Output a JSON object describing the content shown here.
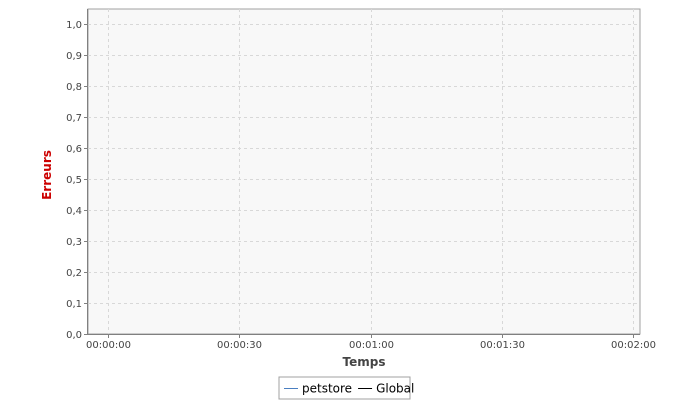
{
  "chart_data": {
    "type": "line",
    "xlabel": "Temps",
    "ylabel": "Erreurs",
    "ylabel_color": "#cc0000",
    "xlabel_color": "#444444",
    "x_ticks": [
      "00:00:00",
      "00:00:30",
      "00:01:00",
      "00:01:30",
      "00:02:00"
    ],
    "x_tick_values": [
      0,
      30,
      60,
      90,
      120
    ],
    "xlim": [
      -4.5,
      121.5
    ],
    "ylim": [
      0,
      1.05
    ],
    "y_ticks": [
      {
        "value": 0,
        "label": "0,0"
      },
      {
        "value": 0.1,
        "label": "0,1"
      },
      {
        "value": 0.2,
        "label": "0,2"
      },
      {
        "value": 0.3,
        "label": "0,3"
      },
      {
        "value": 0.4,
        "label": "0,4"
      },
      {
        "value": 0.5,
        "label": "0,5"
      },
      {
        "value": 0.6,
        "label": "0,6"
      },
      {
        "value": 0.7,
        "label": "0,7"
      },
      {
        "value": 0.8,
        "label": "0,8"
      },
      {
        "value": 0.9,
        "label": "0,9"
      },
      {
        "value": 1.0,
        "label": "1,0"
      }
    ],
    "grid": true,
    "plot_background": "#f8f8f8",
    "grid_color": "#d8d8d8",
    "legend_position": "bottom-center",
    "series": [
      {
        "name": "petstore",
        "color": "#4a7fc1",
        "values": []
      },
      {
        "name": "Global",
        "color": "#000000",
        "values": []
      }
    ]
  }
}
